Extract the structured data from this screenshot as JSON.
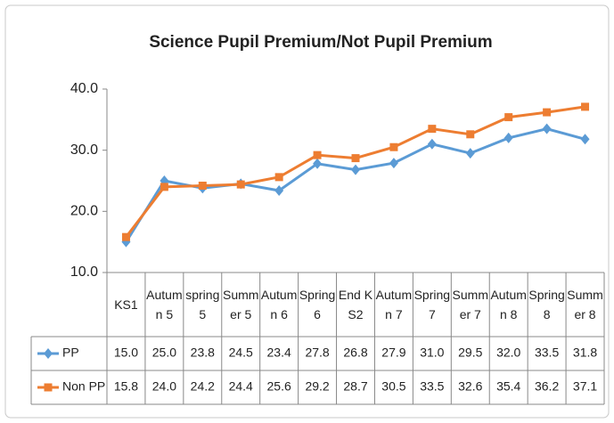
{
  "chart_data": {
    "type": "line",
    "title": "Science Pupil Premium/Not Pupil Premium",
    "categories": [
      "KS1",
      "Autumn 5",
      "spring 5",
      "Summer 5",
      "Autumn 6",
      "Spring 6",
      "End KS2",
      "Autumn 7",
      "Spring 7",
      "Summer 7",
      "Autumn 8",
      "Spring 8",
      "Summer 8"
    ],
    "series": [
      {
        "name": "PP",
        "color": "#5b9bd5",
        "marker": "diamond",
        "values": [
          15.0,
          25.0,
          23.8,
          24.5,
          23.4,
          27.8,
          26.8,
          27.9,
          31.0,
          29.5,
          32.0,
          33.5,
          31.8
        ],
        "value_labels": [
          "15.0",
          "25.0",
          "23.8",
          "24.5",
          "23.4",
          "27.8",
          "26.8",
          "27.9",
          "31.0",
          "29.5",
          "32.0",
          "33.5",
          "31.8"
        ]
      },
      {
        "name": "Non PP",
        "color": "#ed7d31",
        "marker": "square",
        "values": [
          15.8,
          24.0,
          24.2,
          24.4,
          25.6,
          29.2,
          28.7,
          30.5,
          33.5,
          32.6,
          35.4,
          36.2,
          37.1
        ],
        "value_labels": [
          "15.8",
          "24.0",
          "24.2",
          "24.4",
          "25.6",
          "29.2",
          "28.7",
          "30.5",
          "33.5",
          "32.6",
          "35.4",
          "36.2",
          "37.1"
        ]
      }
    ],
    "ylim": [
      10,
      40
    ],
    "yticks": [
      {
        "value": 10,
        "label": "10.0"
      },
      {
        "value": 20,
        "label": "20.0"
      },
      {
        "value": 30,
        "label": "30.0"
      },
      {
        "value": 40,
        "label": "40.0"
      }
    ],
    "grid": false,
    "data_table": true
  }
}
